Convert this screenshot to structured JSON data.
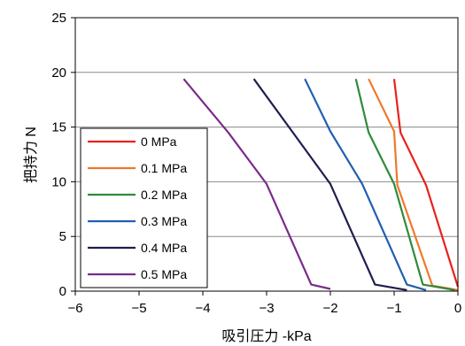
{
  "chart_data": {
    "type": "line",
    "title": "",
    "xlabel": "吸引圧力 -kPa",
    "ylabel": "把持力 N",
    "xlim": [
      -6,
      0
    ],
    "ylim": [
      0,
      25
    ],
    "xticks": [
      "−6",
      "−5",
      "−4",
      "−3",
      "−2",
      "−1",
      "0"
    ],
    "yticks": [
      "0",
      "5",
      "10",
      "15",
      "20",
      "25"
    ],
    "grid": "horizontal",
    "legend_position": "lower-left",
    "series": [
      {
        "name": "0 MPa",
        "color": "#e8211d",
        "points": [
          [
            -1.0,
            19.4
          ],
          [
            -0.9,
            14.5
          ],
          [
            -0.5,
            9.7
          ],
          [
            0.0,
            0.4
          ]
        ]
      },
      {
        "name": "0.1 MPa",
        "color": "#f0782a",
        "points": [
          [
            -1.4,
            19.4
          ],
          [
            -1.0,
            14.6
          ],
          [
            -0.95,
            9.7
          ],
          [
            -0.4,
            0.5
          ],
          [
            0.0,
            0.1
          ]
        ]
      },
      {
        "name": "0.2 MPa",
        "color": "#2e8b3a",
        "points": [
          [
            -1.6,
            19.4
          ],
          [
            -1.4,
            14.5
          ],
          [
            -1.0,
            9.8
          ],
          [
            -0.55,
            0.6
          ],
          [
            -0.05,
            0.1
          ]
        ]
      },
      {
        "name": "0.3 MPa",
        "color": "#1f5fb0",
        "points": [
          [
            -2.4,
            19.4
          ],
          [
            -2.0,
            14.6
          ],
          [
            -1.5,
            9.8
          ],
          [
            -0.8,
            0.6
          ],
          [
            -0.5,
            0.1
          ]
        ]
      },
      {
        "name": "0.4 MPa",
        "color": "#1e1e50",
        "points": [
          [
            -3.2,
            19.4
          ],
          [
            -2.6,
            14.6
          ],
          [
            -2.0,
            9.8
          ],
          [
            -1.3,
            0.6
          ],
          [
            -0.8,
            0.1
          ]
        ]
      },
      {
        "name": "0.5 MPa",
        "color": "#7b2a8a",
        "points": [
          [
            -4.3,
            19.4
          ],
          [
            -3.6,
            14.5
          ],
          [
            -3.0,
            9.8
          ],
          [
            -2.3,
            0.6
          ],
          [
            -2.0,
            0.2
          ]
        ]
      }
    ]
  }
}
